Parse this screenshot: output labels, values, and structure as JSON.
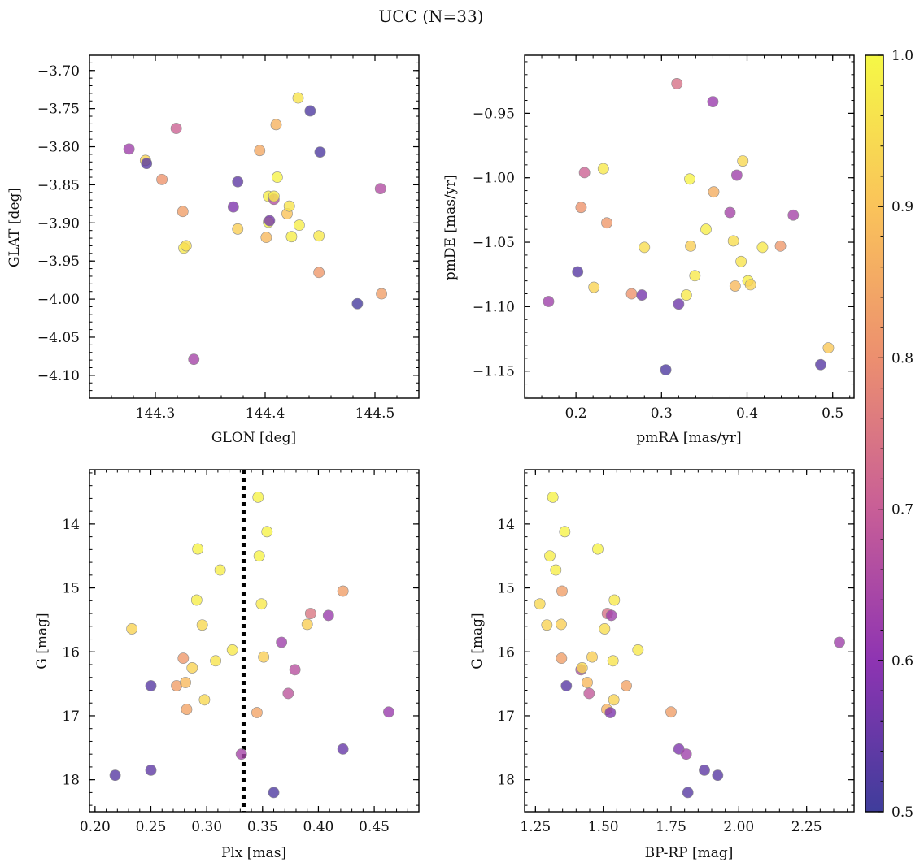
{
  "figure": {
    "title": "UCC (N=33)",
    "colormap": "plasma",
    "colorbar": {
      "range": [
        0.5,
        1.0
      ],
      "ticks": [
        0.5,
        0.6,
        0.7,
        0.8,
        0.9,
        1.0
      ],
      "tick_labels": [
        "0.5",
        "0.6",
        "0.7",
        "0.8",
        "0.9",
        "1.0"
      ]
    },
    "marker_alpha": 0.8,
    "marker_edge_color": "#8c8c8c"
  },
  "chart_data": [
    {
      "type": "scatter",
      "xlabel": "GLON [deg]",
      "ylabel": "GLAT [deg]",
      "xlim": [
        144.24,
        144.54
      ],
      "ylim": [
        -4.13,
        -3.68
      ],
      "y_inverted": false,
      "xticks": [
        144.3,
        144.4,
        144.5
      ],
      "xtick_labels": [
        "144.3",
        "144.4",
        "144.5"
      ],
      "yticks": [
        -3.7,
        -3.75,
        -3.8,
        -3.85,
        -3.9,
        -3.95,
        -4.0,
        -4.05,
        -4.1
      ],
      "ytick_labels": [
        "−3.70",
        "−3.75",
        "−3.80",
        "−3.85",
        "−3.90",
        "−3.95",
        "−4.00",
        "−4.05",
        "−4.10"
      ],
      "points": [
        {
          "x": 144.276,
          "y": -3.803,
          "c": 0.63
        },
        {
          "x": 144.291,
          "y": -3.818,
          "c": 0.93
        },
        {
          "x": 144.292,
          "y": -3.822,
          "c": 0.53
        },
        {
          "x": 144.306,
          "y": -3.843,
          "c": 0.81
        },
        {
          "x": 144.319,
          "y": -3.776,
          "c": 0.71
        },
        {
          "x": 144.325,
          "y": -3.885,
          "c": 0.83
        },
        {
          "x": 144.326,
          "y": -3.933,
          "c": 0.97
        },
        {
          "x": 144.328,
          "y": -3.93,
          "c": 0.95
        },
        {
          "x": 144.335,
          "y": -4.079,
          "c": 0.64
        },
        {
          "x": 144.371,
          "y": -3.879,
          "c": 0.58
        },
        {
          "x": 144.375,
          "y": -3.846,
          "c": 0.54
        },
        {
          "x": 144.375,
          "y": -3.908,
          "c": 0.92
        },
        {
          "x": 144.395,
          "y": -3.805,
          "c": 0.85
        },
        {
          "x": 144.401,
          "y": -3.919,
          "c": 0.88
        },
        {
          "x": 144.403,
          "y": -3.865,
          "c": 0.98
        },
        {
          "x": 144.403,
          "y": -3.899,
          "c": 0.99
        },
        {
          "x": 144.404,
          "y": -3.897,
          "c": 0.57
        },
        {
          "x": 144.408,
          "y": -3.869,
          "c": 0.66
        },
        {
          "x": 144.408,
          "y": -3.865,
          "c": 0.97
        },
        {
          "x": 144.41,
          "y": -3.771,
          "c": 0.87
        },
        {
          "x": 144.411,
          "y": -3.84,
          "c": 0.99
        },
        {
          "x": 144.42,
          "y": -3.888,
          "c": 0.9
        },
        {
          "x": 144.422,
          "y": -3.878,
          "c": 0.96
        },
        {
          "x": 144.424,
          "y": -3.918,
          "c": 0.98
        },
        {
          "x": 144.43,
          "y": -3.736,
          "c": 0.96
        },
        {
          "x": 144.431,
          "y": -3.903,
          "c": 0.98
        },
        {
          "x": 144.441,
          "y": -3.753,
          "c": 0.52
        },
        {
          "x": 144.449,
          "y": -3.965,
          "c": 0.82
        },
        {
          "x": 144.449,
          "y": -3.917,
          "c": 0.97
        },
        {
          "x": 144.45,
          "y": -3.807,
          "c": 0.52
        },
        {
          "x": 144.484,
          "y": -4.006,
          "c": 0.51
        },
        {
          "x": 144.505,
          "y": -3.855,
          "c": 0.66
        },
        {
          "x": 144.506,
          "y": -3.993,
          "c": 0.83
        }
      ]
    },
    {
      "type": "scatter",
      "xlabel": "pmRA [mas/yr]",
      "ylabel": "pmDE [mas/yr]",
      "xlim": [
        0.14,
        0.525
      ],
      "ylim": [
        -1.171,
        -0.905
      ],
      "y_inverted": false,
      "xticks": [
        0.2,
        0.3,
        0.4,
        0.5
      ],
      "xtick_labels": [
        "0.2",
        "0.3",
        "0.4",
        "0.5"
      ],
      "yticks": [
        -0.95,
        -1.0,
        -1.05,
        -1.1,
        -1.15
      ],
      "ytick_labels": [
        "−0.95",
        "−1.00",
        "−1.05",
        "−1.10",
        "−1.15"
      ],
      "points": [
        {
          "x": 0.168,
          "y": -1.096,
          "c": 0.63
        },
        {
          "x": 0.202,
          "y": -1.073,
          "c": 0.53
        },
        {
          "x": 0.206,
          "y": -1.023,
          "c": 0.81
        },
        {
          "x": 0.21,
          "y": -0.996,
          "c": 0.71
        },
        {
          "x": 0.221,
          "y": -1.085,
          "c": 0.93
        },
        {
          "x": 0.232,
          "y": -0.993,
          "c": 0.97
        },
        {
          "x": 0.236,
          "y": -1.035,
          "c": 0.82
        },
        {
          "x": 0.265,
          "y": -1.09,
          "c": 0.81
        },
        {
          "x": 0.277,
          "y": -1.091,
          "c": 0.57
        },
        {
          "x": 0.28,
          "y": -1.054,
          "c": 0.95
        },
        {
          "x": 0.305,
          "y": -1.149,
          "c": 0.52
        },
        {
          "x": 0.318,
          "y": -0.927,
          "c": 0.74
        },
        {
          "x": 0.32,
          "y": -1.098,
          "c": 0.56
        },
        {
          "x": 0.329,
          "y": -1.091,
          "c": 0.97
        },
        {
          "x": 0.333,
          "y": -1.001,
          "c": 0.99
        },
        {
          "x": 0.334,
          "y": -1.053,
          "c": 0.92
        },
        {
          "x": 0.339,
          "y": -1.076,
          "c": 0.97
        },
        {
          "x": 0.352,
          "y": -1.04,
          "c": 0.98
        },
        {
          "x": 0.36,
          "y": -0.941,
          "c": 0.62
        },
        {
          "x": 0.361,
          "y": -1.011,
          "c": 0.86
        },
        {
          "x": 0.38,
          "y": -1.027,
          "c": 0.64
        },
        {
          "x": 0.384,
          "y": -1.049,
          "c": 0.95
        },
        {
          "x": 0.386,
          "y": -1.084,
          "c": 0.88
        },
        {
          "x": 0.388,
          "y": -0.998,
          "c": 0.63
        },
        {
          "x": 0.393,
          "y": -1.065,
          "c": 0.96
        },
        {
          "x": 0.395,
          "y": -0.987,
          "c": 0.94
        },
        {
          "x": 0.401,
          "y": -1.08,
          "c": 0.98
        },
        {
          "x": 0.404,
          "y": -1.083,
          "c": 0.93
        },
        {
          "x": 0.418,
          "y": -1.054,
          "c": 0.97
        },
        {
          "x": 0.439,
          "y": -1.053,
          "c": 0.82
        },
        {
          "x": 0.454,
          "y": -1.029,
          "c": 0.64
        },
        {
          "x": 0.486,
          "y": -1.145,
          "c": 0.53
        },
        {
          "x": 0.495,
          "y": -1.132,
          "c": 0.91
        }
      ]
    },
    {
      "type": "scatter",
      "xlabel": "Plx [mas]",
      "ylabel": "G [mag]",
      "xlim": [
        0.195,
        0.49
      ],
      "ylim": [
        13.15,
        18.5
      ],
      "y_inverted": true,
      "xticks": [
        0.2,
        0.25,
        0.3,
        0.35,
        0.4,
        0.45
      ],
      "xtick_labels": [
        "0.20",
        "0.25",
        "0.30",
        "0.35",
        "0.40",
        "0.45"
      ],
      "yticks": [
        14,
        15,
        16,
        17,
        18
      ],
      "ytick_labels": [
        "14",
        "15",
        "16",
        "17",
        "18"
      ],
      "vline": {
        "x": 0.333,
        "style": "dotted",
        "color": "#000000"
      },
      "points": [
        {
          "x": 0.218,
          "y": 17.93,
          "c": 0.53
        },
        {
          "x": 0.233,
          "y": 15.64,
          "c": 0.93
        },
        {
          "x": 0.25,
          "y": 16.53,
          "c": 0.53
        },
        {
          "x": 0.25,
          "y": 17.85,
          "c": 0.54
        },
        {
          "x": 0.273,
          "y": 16.53,
          "c": 0.83
        },
        {
          "x": 0.279,
          "y": 16.1,
          "c": 0.82
        },
        {
          "x": 0.281,
          "y": 16.48,
          "c": 0.88
        },
        {
          "x": 0.282,
          "y": 16.9,
          "c": 0.84
        },
        {
          "x": 0.287,
          "y": 16.25,
          "c": 0.93
        },
        {
          "x": 0.291,
          "y": 15.19,
          "c": 0.98
        },
        {
          "x": 0.292,
          "y": 14.39,
          "c": 0.99
        },
        {
          "x": 0.296,
          "y": 15.58,
          "c": 0.94
        },
        {
          "x": 0.298,
          "y": 16.75,
          "c": 0.94
        },
        {
          "x": 0.308,
          "y": 16.14,
          "c": 0.96
        },
        {
          "x": 0.312,
          "y": 14.72,
          "c": 0.98
        },
        {
          "x": 0.323,
          "y": 15.97,
          "c": 0.97
        },
        {
          "x": 0.331,
          "y": 17.6,
          "c": 0.64
        },
        {
          "x": 0.345,
          "y": 16.95,
          "c": 0.84
        },
        {
          "x": 0.346,
          "y": 13.58,
          "c": 0.99
        },
        {
          "x": 0.347,
          "y": 14.5,
          "c": 0.99
        },
        {
          "x": 0.349,
          "y": 15.25,
          "c": 0.97
        },
        {
          "x": 0.351,
          "y": 16.08,
          "c": 0.92
        },
        {
          "x": 0.354,
          "y": 14.12,
          "c": 0.99
        },
        {
          "x": 0.36,
          "y": 18.2,
          "c": 0.52
        },
        {
          "x": 0.367,
          "y": 15.85,
          "c": 0.63
        },
        {
          "x": 0.373,
          "y": 16.65,
          "c": 0.68
        },
        {
          "x": 0.379,
          "y": 16.28,
          "c": 0.67
        },
        {
          "x": 0.39,
          "y": 15.57,
          "c": 0.92
        },
        {
          "x": 0.393,
          "y": 15.4,
          "c": 0.75
        },
        {
          "x": 0.409,
          "y": 15.43,
          "c": 0.62
        },
        {
          "x": 0.422,
          "y": 15.05,
          "c": 0.83
        },
        {
          "x": 0.422,
          "y": 17.52,
          "c": 0.55
        },
        {
          "x": 0.463,
          "y": 16.94,
          "c": 0.62
        }
      ]
    },
    {
      "type": "scatter",
      "xlabel": "BP-RP [mag]",
      "ylabel": "G [mag]",
      "xlim": [
        1.21,
        2.425
      ],
      "ylim": [
        13.15,
        18.5
      ],
      "y_inverted": true,
      "xticks": [
        1.25,
        1.5,
        1.75,
        2.0,
        2.25
      ],
      "xtick_labels": [
        "1.25",
        "1.50",
        "1.75",
        "2.00",
        "2.25"
      ],
      "yticks": [
        14,
        15,
        16,
        17,
        18
      ],
      "ytick_labels": [
        "14",
        "15",
        "16",
        "17",
        "18"
      ],
      "points": [
        {
          "x": 1.266,
          "y": 15.25,
          "c": 0.94
        },
        {
          "x": 1.292,
          "y": 15.58,
          "c": 0.93
        },
        {
          "x": 1.303,
          "y": 14.5,
          "c": 0.98
        },
        {
          "x": 1.314,
          "y": 13.58,
          "c": 0.99
        },
        {
          "x": 1.325,
          "y": 14.72,
          "c": 0.98
        },
        {
          "x": 1.345,
          "y": 15.57,
          "c": 0.92
        },
        {
          "x": 1.346,
          "y": 16.1,
          "c": 0.83
        },
        {
          "x": 1.348,
          "y": 15.05,
          "c": 0.83
        },
        {
          "x": 1.358,
          "y": 14.12,
          "c": 0.99
        },
        {
          "x": 1.364,
          "y": 16.53,
          "c": 0.53
        },
        {
          "x": 1.418,
          "y": 16.28,
          "c": 0.66
        },
        {
          "x": 1.422,
          "y": 16.25,
          "c": 0.94
        },
        {
          "x": 1.441,
          "y": 16.48,
          "c": 0.88
        },
        {
          "x": 1.448,
          "y": 16.65,
          "c": 0.69
        },
        {
          "x": 1.459,
          "y": 16.08,
          "c": 0.92
        },
        {
          "x": 1.48,
          "y": 14.39,
          "c": 0.99
        },
        {
          "x": 1.505,
          "y": 15.64,
          "c": 0.95
        },
        {
          "x": 1.513,
          "y": 16.9,
          "c": 0.87
        },
        {
          "x": 1.515,
          "y": 15.4,
          "c": 0.74
        },
        {
          "x": 1.526,
          "y": 16.95,
          "c": 0.58
        },
        {
          "x": 1.53,
          "y": 15.43,
          "c": 0.63
        },
        {
          "x": 1.536,
          "y": 16.14,
          "c": 0.96
        },
        {
          "x": 1.539,
          "y": 16.75,
          "c": 0.93
        },
        {
          "x": 1.541,
          "y": 15.19,
          "c": 0.97
        },
        {
          "x": 1.585,
          "y": 16.53,
          "c": 0.84
        },
        {
          "x": 1.628,
          "y": 15.97,
          "c": 0.97
        },
        {
          "x": 1.75,
          "y": 16.94,
          "c": 0.83
        },
        {
          "x": 1.779,
          "y": 17.52,
          "c": 0.58
        },
        {
          "x": 1.806,
          "y": 17.6,
          "c": 0.63
        },
        {
          "x": 1.812,
          "y": 18.2,
          "c": 0.53
        },
        {
          "x": 1.873,
          "y": 17.85,
          "c": 0.54
        },
        {
          "x": 1.922,
          "y": 17.93,
          "c": 0.53
        },
        {
          "x": 2.371,
          "y": 15.85,
          "c": 0.63
        }
      ]
    }
  ]
}
